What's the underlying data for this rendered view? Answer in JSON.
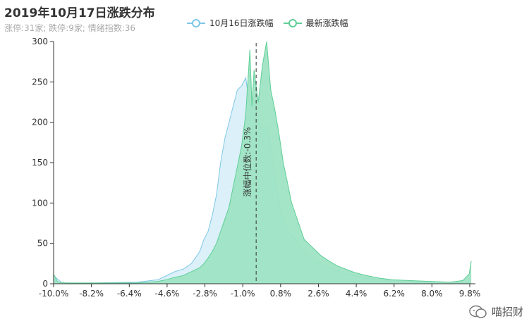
{
  "title": "2019年10月17日涨跌分布",
  "subtitle": "涨停:31家; 跌停:9家; 情绪指数:36",
  "watermark": "喵招财",
  "chart_data": {
    "type": "area",
    "xlabel": "",
    "ylabel": "",
    "x_tick_labels": [
      "-10.0%",
      "-8.2%",
      "-6.4%",
      "-4.6%",
      "-2.8%",
      "-1.0%",
      "0.8%",
      "2.6%",
      "4.4%",
      "6.2%",
      "8.0%",
      "9.8%"
    ],
    "xlim": [
      -10.0,
      10.2
    ],
    "ylim": [
      0,
      300
    ],
    "yticks": [
      0,
      50,
      100,
      150,
      200,
      250,
      300
    ],
    "grid": false,
    "legend_position": "top",
    "median_line": {
      "x": -0.3,
      "label": "涨幅中位数:-0.3%"
    },
    "series": [
      {
        "name": "10月16日涨跌幅",
        "line_color": "#7fc7e8",
        "fill_color": "#d7eef8",
        "points": [
          [
            -10.0,
            10
          ],
          [
            -9.6,
            1
          ],
          [
            -8.0,
            1
          ],
          [
            -6.0,
            2
          ],
          [
            -5.0,
            5
          ],
          [
            -4.6,
            10
          ],
          [
            -4.2,
            15
          ],
          [
            -3.8,
            18
          ],
          [
            -3.4,
            25
          ],
          [
            -3.0,
            40
          ],
          [
            -2.8,
            55
          ],
          [
            -2.6,
            65
          ],
          [
            -2.4,
            85
          ],
          [
            -2.2,
            110
          ],
          [
            -2.0,
            150
          ],
          [
            -1.8,
            180
          ],
          [
            -1.6,
            200
          ],
          [
            -1.4,
            220
          ],
          [
            -1.2,
            240
          ],
          [
            -1.0,
            245
          ],
          [
            -0.8,
            255
          ],
          [
            -0.6,
            220
          ],
          [
            -0.4,
            230
          ],
          [
            -0.2,
            200
          ],
          [
            0.0,
            190
          ],
          [
            0.2,
            195
          ],
          [
            0.4,
            170
          ],
          [
            0.6,
            130
          ],
          [
            0.8,
            100
          ],
          [
            1.0,
            80
          ],
          [
            1.2,
            65
          ],
          [
            1.6,
            55
          ],
          [
            2.0,
            40
          ],
          [
            2.4,
            32
          ],
          [
            2.8,
            25
          ],
          [
            3.2,
            20
          ],
          [
            3.8,
            14
          ],
          [
            4.4,
            10
          ],
          [
            5.0,
            7
          ],
          [
            5.6,
            5
          ],
          [
            6.2,
            4
          ],
          [
            7.0,
            3
          ],
          [
            8.0,
            2
          ],
          [
            9.0,
            2
          ],
          [
            9.8,
            1
          ],
          [
            10.0,
            1
          ]
        ]
      },
      {
        "name": "最新涨跌幅",
        "line_color": "#5fcf96",
        "fill_color": "#9fe3c4",
        "points": [
          [
            -10.0,
            12
          ],
          [
            -9.8,
            2
          ],
          [
            -9.4,
            1
          ],
          [
            -8.0,
            1
          ],
          [
            -6.0,
            1
          ],
          [
            -5.0,
            3
          ],
          [
            -4.6,
            5
          ],
          [
            -4.2,
            8
          ],
          [
            -3.8,
            10
          ],
          [
            -3.4,
            15
          ],
          [
            -3.0,
            20
          ],
          [
            -2.8,
            25
          ],
          [
            -2.6,
            32
          ],
          [
            -2.4,
            40
          ],
          [
            -2.2,
            50
          ],
          [
            -2.0,
            65
          ],
          [
            -1.8,
            80
          ],
          [
            -1.6,
            95
          ],
          [
            -1.4,
            120
          ],
          [
            -1.2,
            145
          ],
          [
            -1.0,
            170
          ],
          [
            -0.8,
            210
          ],
          [
            -0.6,
            290
          ],
          [
            -0.5,
            220
          ],
          [
            -0.4,
            265
          ],
          [
            -0.2,
            225
          ],
          [
            0.0,
            270
          ],
          [
            0.2,
            300
          ],
          [
            0.4,
            240
          ],
          [
            0.6,
            215
          ],
          [
            0.8,
            185
          ],
          [
            1.0,
            150
          ],
          [
            1.2,
            125
          ],
          [
            1.4,
            100
          ],
          [
            1.6,
            85
          ],
          [
            1.8,
            70
          ],
          [
            2.0,
            55
          ],
          [
            2.4,
            45
          ],
          [
            2.8,
            35
          ],
          [
            3.2,
            28
          ],
          [
            3.6,
            22
          ],
          [
            4.0,
            18
          ],
          [
            4.4,
            14
          ],
          [
            5.0,
            10
          ],
          [
            5.6,
            7
          ],
          [
            6.2,
            5
          ],
          [
            7.0,
            4
          ],
          [
            8.0,
            3
          ],
          [
            9.0,
            2
          ],
          [
            9.6,
            4
          ],
          [
            9.9,
            12
          ],
          [
            10.0,
            28
          ]
        ]
      }
    ]
  }
}
